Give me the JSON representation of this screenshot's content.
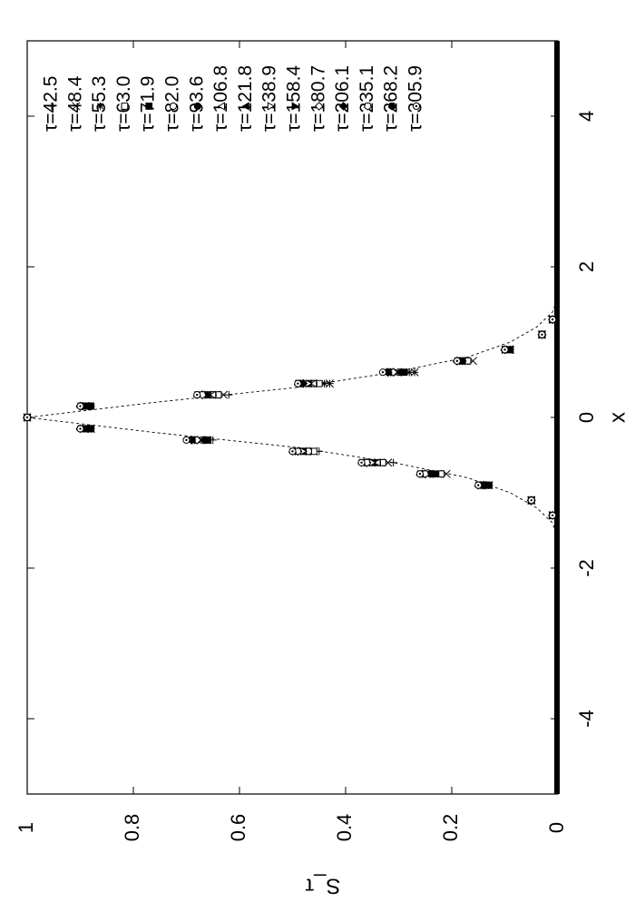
{
  "chart_data": {
    "type": "scatter",
    "orientation": "rotated-90-clockwise",
    "title": "",
    "xlabel": "x",
    "ylabel": "S_τ",
    "xlim": [
      -5,
      5
    ],
    "ylim": [
      0,
      1
    ],
    "x_ticks": [
      "-4",
      "-2",
      "0",
      "2",
      "4"
    ],
    "x_tick_values": [
      -4,
      -2,
      0,
      2,
      4
    ],
    "y_ticks": [
      "0",
      "0.2",
      "0.4",
      "0.6",
      "0.8",
      "1"
    ],
    "y_tick_values": [
      0,
      0.2,
      0.4,
      0.6,
      0.8,
      1
    ],
    "grid": false,
    "legend_position": "upper-left (rotated view)",
    "reference_curve": {
      "style": "dashed",
      "x": [
        -5,
        -1.6,
        -1.4,
        -1.2,
        -1.0,
        -0.8,
        -0.6,
        -0.4,
        -0.2,
        0,
        0.2,
        0.4,
        0.6,
        0.8,
        1.0,
        1.2,
        1.4,
        1.6,
        5
      ],
      "y": [
        0,
        0.0,
        0.01,
        0.04,
        0.09,
        0.17,
        0.31,
        0.49,
        0.76,
        1.0,
        0.76,
        0.49,
        0.31,
        0.17,
        0.09,
        0.04,
        0.01,
        0.0,
        0
      ]
    },
    "x": [
      -1.3,
      -1.1,
      -0.9,
      -0.75,
      -0.6,
      -0.45,
      -0.3,
      -0.15,
      0,
      0.15,
      0.3,
      0.45,
      0.6,
      0.75,
      0.9,
      1.1,
      1.3
    ],
    "series": [
      {
        "name": "τ=42.5",
        "marker": "plus",
        "y": [
          0.01,
          0.05,
          0.13,
          0.22,
          0.31,
          0.45,
          0.65,
          0.88,
          1.0,
          0.88,
          0.62,
          0.43,
          0.27,
          0.17,
          0.09,
          0.03,
          0.01
        ]
      },
      {
        "name": "τ=48.4",
        "marker": "cross",
        "y": [
          0.01,
          0.05,
          0.13,
          0.21,
          0.32,
          0.46,
          0.66,
          0.88,
          1.0,
          0.89,
          0.63,
          0.43,
          0.27,
          0.16,
          0.09,
          0.03,
          0.01
        ]
      },
      {
        "name": "τ=55.3",
        "marker": "asterisk",
        "y": [
          0.01,
          0.05,
          0.13,
          0.22,
          0.33,
          0.47,
          0.67,
          0.88,
          1.0,
          0.89,
          0.64,
          0.44,
          0.28,
          0.17,
          0.09,
          0.03,
          0.01
        ]
      },
      {
        "name": "τ=63.0",
        "marker": "open-square",
        "y": [
          0.01,
          0.05,
          0.13,
          0.22,
          0.33,
          0.46,
          0.66,
          0.88,
          1.0,
          0.88,
          0.64,
          0.45,
          0.29,
          0.17,
          0.09,
          0.03,
          0.01
        ]
      },
      {
        "name": "τ=71.9",
        "marker": "filled-square",
        "y": [
          0.01,
          0.05,
          0.13,
          0.23,
          0.34,
          0.47,
          0.66,
          0.88,
          1.0,
          0.88,
          0.65,
          0.46,
          0.29,
          0.18,
          0.09,
          0.03,
          0.01
        ]
      },
      {
        "name": "τ=82.0",
        "marker": "open-circle",
        "y": [
          0.01,
          0.05,
          0.14,
          0.24,
          0.35,
          0.47,
          0.67,
          0.89,
          1.0,
          0.89,
          0.65,
          0.46,
          0.3,
          0.18,
          0.09,
          0.03,
          0.01
        ]
      },
      {
        "name": "τ=93.6",
        "marker": "filled-circle",
        "y": [
          0.01,
          0.05,
          0.14,
          0.24,
          0.36,
          0.48,
          0.68,
          0.89,
          1.0,
          0.89,
          0.66,
          0.47,
          0.31,
          0.18,
          0.09,
          0.03,
          0.01
        ]
      },
      {
        "name": "τ=106.8",
        "marker": "open-triangle-left",
        "y": [
          0.01,
          0.05,
          0.14,
          0.24,
          0.34,
          0.48,
          0.67,
          0.89,
          1.0,
          0.89,
          0.65,
          0.46,
          0.3,
          0.18,
          0.09,
          0.03,
          0.01
        ]
      },
      {
        "name": "τ=121.8",
        "marker": "filled-triangle-left",
        "y": [
          0.01,
          0.05,
          0.14,
          0.24,
          0.35,
          0.48,
          0.67,
          0.89,
          1.0,
          0.89,
          0.66,
          0.47,
          0.3,
          0.18,
          0.09,
          0.03,
          0.01
        ]
      },
      {
        "name": "τ=138.9",
        "marker": "open-triangle-right",
        "y": [
          0.01,
          0.05,
          0.14,
          0.25,
          0.35,
          0.48,
          0.68,
          0.89,
          1.0,
          0.89,
          0.66,
          0.47,
          0.31,
          0.18,
          0.1,
          0.03,
          0.01
        ]
      },
      {
        "name": "τ=158.4",
        "marker": "filled-triangle-right",
        "y": [
          0.01,
          0.05,
          0.14,
          0.25,
          0.36,
          0.49,
          0.68,
          0.89,
          1.0,
          0.89,
          0.66,
          0.48,
          0.31,
          0.18,
          0.1,
          0.03,
          0.01
        ]
      },
      {
        "name": "τ=180.7",
        "marker": "open-diamond",
        "y": [
          0.01,
          0.05,
          0.14,
          0.25,
          0.36,
          0.49,
          0.68,
          0.9,
          1.0,
          0.9,
          0.67,
          0.48,
          0.31,
          0.19,
          0.1,
          0.03,
          0.01
        ]
      },
      {
        "name": "τ=206.1",
        "marker": "filled-diamond",
        "y": [
          0.01,
          0.05,
          0.14,
          0.25,
          0.36,
          0.49,
          0.69,
          0.9,
          1.0,
          0.9,
          0.67,
          0.48,
          0.32,
          0.19,
          0.1,
          0.03,
          0.01
        ]
      },
      {
        "name": "τ=235.1",
        "marker": "open-pentagon",
        "y": [
          0.01,
          0.05,
          0.15,
          0.25,
          0.36,
          0.49,
          0.69,
          0.9,
          1.0,
          0.9,
          0.67,
          0.49,
          0.32,
          0.19,
          0.1,
          0.03,
          0.01
        ]
      },
      {
        "name": "τ=268.2",
        "marker": "filled-pentagon",
        "y": [
          0.01,
          0.05,
          0.15,
          0.26,
          0.37,
          0.5,
          0.69,
          0.9,
          1.0,
          0.9,
          0.68,
          0.49,
          0.32,
          0.19,
          0.1,
          0.03,
          0.01
        ]
      },
      {
        "name": "τ=305.9",
        "marker": "circle-dot",
        "y": [
          0.01,
          0.05,
          0.15,
          0.26,
          0.37,
          0.5,
          0.7,
          0.9,
          1.0,
          0.9,
          0.68,
          0.49,
          0.33,
          0.19,
          0.1,
          0.03,
          0.01
        ]
      }
    ]
  }
}
